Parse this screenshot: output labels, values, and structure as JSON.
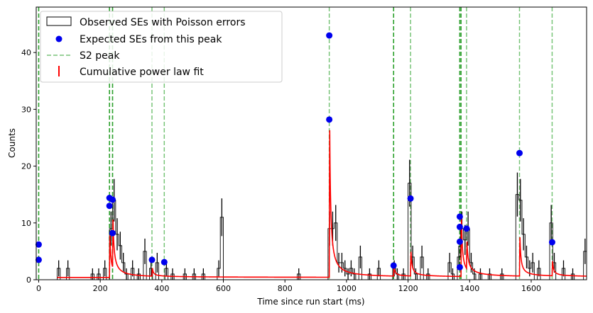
{
  "chart_data": {
    "type": "line",
    "title": "",
    "xlabel": "Time since run start (ms)",
    "ylabel": "Counts",
    "xlim": [
      -8,
      1780
    ],
    "ylim": [
      0,
      48
    ],
    "xticks": [
      0,
      200,
      400,
      600,
      800,
      1000,
      1200,
      1400,
      1600
    ],
    "yticks": [
      0,
      10,
      20,
      30,
      40
    ],
    "legend_position": "upper-left",
    "legend": [
      {
        "key": "observed",
        "label": "Observed SEs with Poisson errors"
      },
      {
        "key": "expected",
        "label": "Expected SEs from this peak"
      },
      {
        "key": "s2",
        "label": "S2 peak"
      },
      {
        "key": "fit",
        "label": "Cumulative power law fit"
      }
    ],
    "colors": {
      "observed": "#000000",
      "expected": "#0000ee",
      "s2_strong": "#2ca02c",
      "s2_light": "#78c478",
      "fit": "#ff0000"
    },
    "s2_peaks": [
      {
        "x": 0,
        "strong": true
      },
      {
        "x": 230,
        "strong": true
      },
      {
        "x": 240,
        "strong": true
      },
      {
        "x": 368,
        "strong": false
      },
      {
        "x": 408,
        "strong": false
      },
      {
        "x": 944,
        "strong": false
      },
      {
        "x": 1153,
        "strong": true
      },
      {
        "x": 1208,
        "strong": false
      },
      {
        "x": 1368,
        "strong": true
      },
      {
        "x": 1372,
        "strong": true
      },
      {
        "x": 1390,
        "strong": false
      },
      {
        "x": 1562,
        "strong": false
      },
      {
        "x": 1668,
        "strong": false
      }
    ],
    "expected_points": [
      {
        "x": 0,
        "y": 6.2
      },
      {
        "x": 0,
        "y": 3.5
      },
      {
        "x": 230,
        "y": 14.4
      },
      {
        "x": 230,
        "y": 13.0
      },
      {
        "x": 240,
        "y": 14.1
      },
      {
        "x": 240,
        "y": 8.2
      },
      {
        "x": 368,
        "y": 3.5
      },
      {
        "x": 408,
        "y": 3.1
      },
      {
        "x": 944,
        "y": 43.0
      },
      {
        "x": 944,
        "y": 28.2
      },
      {
        "x": 1153,
        "y": 2.5
      },
      {
        "x": 1208,
        "y": 14.3
      },
      {
        "x": 1368,
        "y": 11.1
      },
      {
        "x": 1368,
        "y": 9.3
      },
      {
        "x": 1368,
        "y": 6.7
      },
      {
        "x": 1368,
        "y": 2.2
      },
      {
        "x": 1390,
        "y": 9.0
      },
      {
        "x": 1562,
        "y": 22.3
      },
      {
        "x": 1668,
        "y": 6.6
      }
    ],
    "histogram": {
      "bin_width": 10,
      "bins": [
        {
          "x": 60,
          "y": 2
        },
        {
          "x": 90,
          "y": 2
        },
        {
          "x": 170,
          "y": 1
        },
        {
          "x": 190,
          "y": 1
        },
        {
          "x": 210,
          "y": 2
        },
        {
          "x": 230,
          "y": 9
        },
        {
          "x": 240,
          "y": 14
        },
        {
          "x": 250,
          "y": 8
        },
        {
          "x": 260,
          "y": 6
        },
        {
          "x": 270,
          "y": 3
        },
        {
          "x": 280,
          "y": 1
        },
        {
          "x": 300,
          "y": 2
        },
        {
          "x": 320,
          "y": 1
        },
        {
          "x": 340,
          "y": 5
        },
        {
          "x": 360,
          "y": 2
        },
        {
          "x": 380,
          "y": 3
        },
        {
          "x": 410,
          "y": 2
        },
        {
          "x": 430,
          "y": 1
        },
        {
          "x": 470,
          "y": 1
        },
        {
          "x": 500,
          "y": 1
        },
        {
          "x": 530,
          "y": 1
        },
        {
          "x": 580,
          "y": 2
        },
        {
          "x": 590,
          "y": 11
        },
        {
          "x": 840,
          "y": 1
        },
        {
          "x": 940,
          "y": 9
        },
        {
          "x": 950,
          "y": 9
        },
        {
          "x": 960,
          "y": 10
        },
        {
          "x": 970,
          "y": 3
        },
        {
          "x": 980,
          "y": 3
        },
        {
          "x": 990,
          "y": 2
        },
        {
          "x": 1000,
          "y": 1
        },
        {
          "x": 1010,
          "y": 2
        },
        {
          "x": 1020,
          "y": 1
        },
        {
          "x": 1040,
          "y": 4
        },
        {
          "x": 1070,
          "y": 1
        },
        {
          "x": 1100,
          "y": 2
        },
        {
          "x": 1150,
          "y": 2
        },
        {
          "x": 1160,
          "y": 1
        },
        {
          "x": 1180,
          "y": 1
        },
        {
          "x": 1200,
          "y": 17
        },
        {
          "x": 1210,
          "y": 4
        },
        {
          "x": 1220,
          "y": 1
        },
        {
          "x": 1240,
          "y": 4
        },
        {
          "x": 1260,
          "y": 1
        },
        {
          "x": 1330,
          "y": 3
        },
        {
          "x": 1340,
          "y": 1
        },
        {
          "x": 1360,
          "y": 4
        },
        {
          "x": 1370,
          "y": 9
        },
        {
          "x": 1380,
          "y": 7
        },
        {
          "x": 1390,
          "y": 9
        },
        {
          "x": 1400,
          "y": 3
        },
        {
          "x": 1410,
          "y": 1
        },
        {
          "x": 1430,
          "y": 1
        },
        {
          "x": 1460,
          "y": 1
        },
        {
          "x": 1500,
          "y": 1
        },
        {
          "x": 1550,
          "y": 15
        },
        {
          "x": 1560,
          "y": 14
        },
        {
          "x": 1570,
          "y": 8
        },
        {
          "x": 1580,
          "y": 4
        },
        {
          "x": 1590,
          "y": 2
        },
        {
          "x": 1600,
          "y": 3
        },
        {
          "x": 1620,
          "y": 2
        },
        {
          "x": 1660,
          "y": 10
        },
        {
          "x": 1670,
          "y": 3
        },
        {
          "x": 1700,
          "y": 2
        },
        {
          "x": 1730,
          "y": 1
        },
        {
          "x": 1770,
          "y": 5
        }
      ]
    },
    "fit_model": {
      "baseline_y": 0.4,
      "exponent": 1.2,
      "peaks": [
        {
          "x": 230,
          "amp": 13.0
        },
        {
          "x": 240,
          "amp": 15.0
        },
        {
          "x": 368,
          "amp": 2.5
        },
        {
          "x": 944,
          "amp": 45.5
        },
        {
          "x": 1153,
          "amp": 3.0
        },
        {
          "x": 1208,
          "amp": 7.5
        },
        {
          "x": 1372,
          "amp": 18.0
        },
        {
          "x": 1390,
          "amp": 8.5
        },
        {
          "x": 1562,
          "amp": 12.0
        },
        {
          "x": 1668,
          "amp": 4.5
        }
      ]
    }
  }
}
